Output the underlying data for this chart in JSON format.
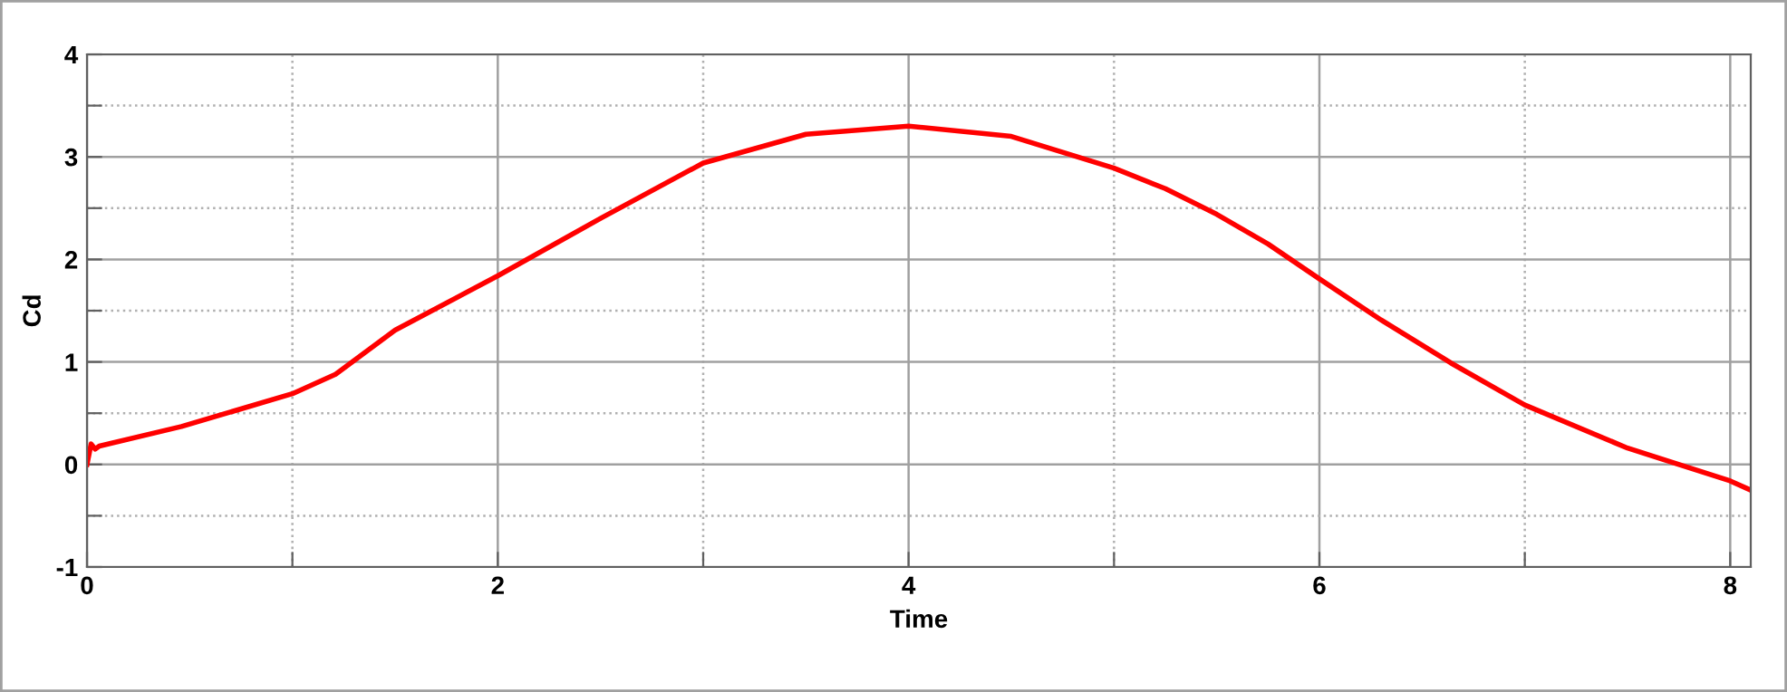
{
  "chart_data": {
    "type": "line",
    "xlabel": "Time",
    "ylabel": "Cd",
    "x": [
      0,
      0.02,
      0.04,
      0.06,
      0.46,
      1.0,
      1.21,
      1.5,
      2.0,
      2.5,
      3.0,
      3.5,
      4.0,
      4.5,
      5.0,
      5.25,
      5.5,
      5.75,
      6.0,
      6.3,
      6.64,
      7.0,
      7.5,
      8.0,
      8.1
    ],
    "series": [
      {
        "color": "#ff0000",
        "values": [
          0,
          0.2,
          0.15,
          0.18,
          0.37,
          0.69,
          0.88,
          1.31,
          1.84,
          2.4,
          2.94,
          3.22,
          3.3,
          3.2,
          2.89,
          2.69,
          2.44,
          2.15,
          1.81,
          1.41,
          0.99,
          0.58,
          0.16,
          -0.16,
          -0.25
        ]
      }
    ],
    "xlim": [
      0,
      8.1
    ],
    "ylim": [
      -1,
      4
    ],
    "xticks": [
      0,
      {
        "value": 1,
        "label": null
      },
      2,
      {
        "value": 3,
        "label": null
      },
      4,
      {
        "value": 5,
        "label": null
      },
      6,
      {
        "value": 7,
        "label": null
      },
      8
    ],
    "yticks": [
      -1,
      {
        "value": -0.5,
        "label": null
      },
      0,
      {
        "value": 0.5,
        "label": null
      },
      1,
      {
        "value": 1.5,
        "label": null
      },
      2,
      {
        "value": 2.5,
        "label": null
      },
      3,
      {
        "value": 3.5,
        "label": null
      },
      4
    ],
    "grid": true,
    "marker": "none",
    "line_style": "solid",
    "legend": false
  }
}
